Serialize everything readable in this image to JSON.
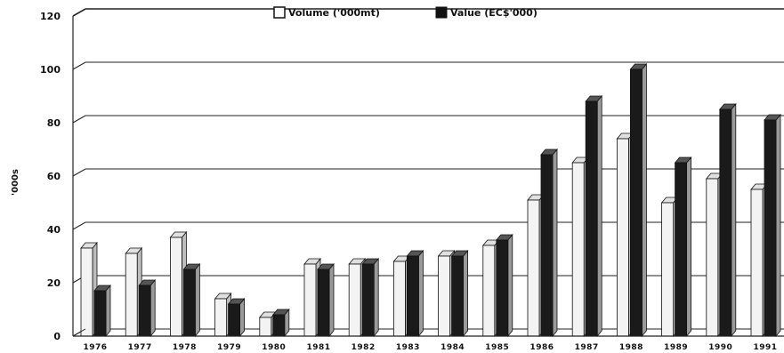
{
  "chart_data": {
    "type": "bar",
    "categories": [
      "1976",
      "1977",
      "1978",
      "1979",
      "1980",
      "1981",
      "1982",
      "1983",
      "1984",
      "1985",
      "1986",
      "1987",
      "1988",
      "1989",
      "1990",
      "1991"
    ],
    "series": [
      {
        "name": "Volume ('000mt)",
        "values": [
          33,
          31,
          37,
          14,
          7,
          27,
          27,
          28,
          30,
          34,
          51,
          65,
          74,
          50,
          59,
          55
        ],
        "color": "#f2f2f2"
      },
      {
        "name": "Value (EC$'000)",
        "values": [
          17,
          19,
          25,
          12,
          8,
          25,
          27,
          30,
          30,
          36,
          68,
          88,
          100,
          65,
          85,
          81
        ],
        "color": "#1a1a1a"
      }
    ],
    "ylabel": "'000s",
    "ylim": [
      0,
      120
    ],
    "yticks": [
      0,
      20,
      40,
      60,
      80,
      100,
      120
    ],
    "grid": true,
    "legend_position": "top-center",
    "style": "3d-clustered-bar"
  }
}
